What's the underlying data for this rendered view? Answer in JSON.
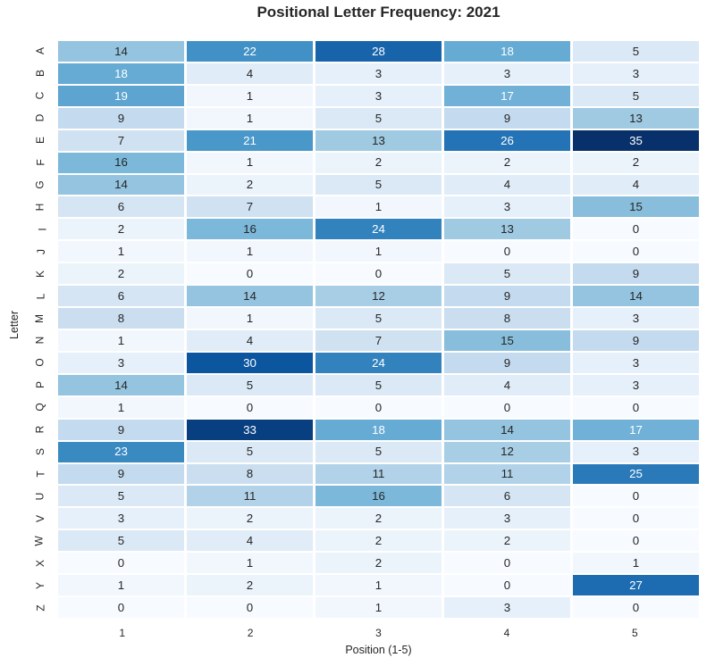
{
  "chart_data": {
    "type": "heatmap",
    "title": "Positional Letter Frequency: 2021",
    "xlabel": "Position (1-5)",
    "ylabel": "Letter",
    "x_ticks": [
      "1",
      "2",
      "3",
      "4",
      "5"
    ],
    "y_ticks": [
      "A",
      "B",
      "C",
      "D",
      "E",
      "F",
      "G",
      "H",
      "I",
      "J",
      "K",
      "L",
      "M",
      "N",
      "O",
      "P",
      "Q",
      "R",
      "S",
      "T",
      "U",
      "V",
      "W",
      "X",
      "Y",
      "Z"
    ],
    "vmin": 0,
    "vmax": 35,
    "colormap": "Blues",
    "colormap_stops": [
      "#f7fbff",
      "#deebf7",
      "#c6dbef",
      "#9ecae1",
      "#6baed6",
      "#4292c6",
      "#2171b5",
      "#08519c",
      "#08306b"
    ],
    "annotation_dark_text": "#262626",
    "annotation_light_text": "#ffffff",
    "grid_line_color": "#ffffff",
    "background_color": "#ffffff",
    "legend": "none",
    "values": [
      [
        14,
        22,
        28,
        18,
        5
      ],
      [
        18,
        4,
        3,
        3,
        3
      ],
      [
        19,
        1,
        3,
        17,
        5
      ],
      [
        9,
        1,
        5,
        9,
        13
      ],
      [
        7,
        21,
        13,
        26,
        35
      ],
      [
        16,
        1,
        2,
        2,
        2
      ],
      [
        14,
        2,
        5,
        4,
        4
      ],
      [
        6,
        7,
        1,
        3,
        15
      ],
      [
        2,
        16,
        24,
        13,
        0
      ],
      [
        1,
        1,
        1,
        0,
        0
      ],
      [
        2,
        0,
        0,
        5,
        9
      ],
      [
        6,
        14,
        12,
        9,
        14
      ],
      [
        8,
        1,
        5,
        8,
        3
      ],
      [
        1,
        4,
        7,
        15,
        9
      ],
      [
        3,
        30,
        24,
        9,
        3
      ],
      [
        14,
        5,
        5,
        4,
        3
      ],
      [
        1,
        0,
        0,
        0,
        0
      ],
      [
        9,
        33,
        18,
        14,
        17
      ],
      [
        23,
        5,
        5,
        12,
        3
      ],
      [
        9,
        8,
        11,
        11,
        25
      ],
      [
        5,
        11,
        16,
        6,
        0
      ],
      [
        3,
        2,
        2,
        3,
        0
      ],
      [
        5,
        4,
        2,
        2,
        0
      ],
      [
        0,
        1,
        2,
        0,
        1
      ],
      [
        1,
        2,
        1,
        0,
        27
      ],
      [
        0,
        0,
        1,
        3,
        0
      ]
    ]
  }
}
